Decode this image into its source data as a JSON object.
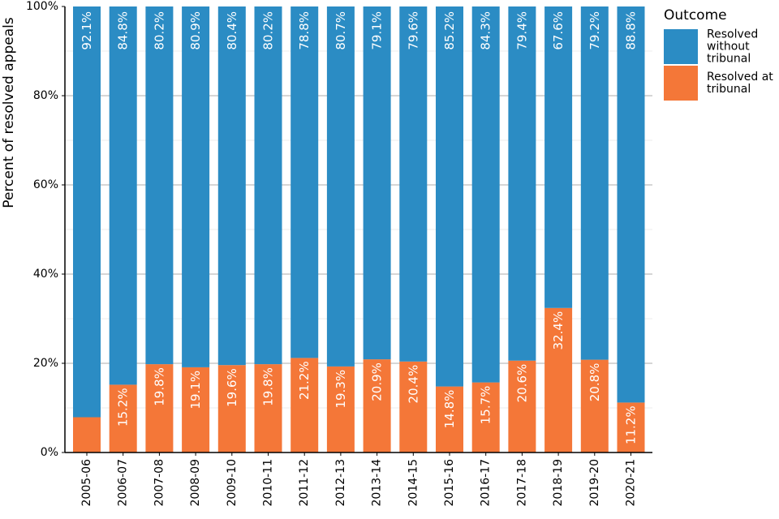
{
  "chart_data": {
    "type": "bar",
    "stacked": true,
    "percent": true,
    "ylabel": "Percent of resolved appeals",
    "xlabel": "",
    "ylim": [
      0,
      100
    ],
    "yticks": [
      "0%",
      "20%",
      "40%",
      "60%",
      "80%",
      "100%"
    ],
    "categories": [
      "2005-06",
      "2006-07",
      "2007-08",
      "2008-09",
      "2009-10",
      "2010-11",
      "2011-12",
      "2012-13",
      "2013-14",
      "2014-15",
      "2015-16",
      "2016-17",
      "2017-18",
      "2018-19",
      "2019-20",
      "2020-21"
    ],
    "series": [
      {
        "name": "Resolved at tribunal",
        "color": "#f47738",
        "values": [
          7.9,
          15.2,
          19.8,
          19.1,
          19.6,
          19.8,
          21.2,
          19.3,
          20.9,
          20.4,
          14.8,
          15.7,
          20.6,
          32.4,
          20.8,
          11.2
        ],
        "labels": [
          "",
          "15.2%",
          "19.8%",
          "19.1%",
          "19.6%",
          "19.8%",
          "21.2%",
          "19.3%",
          "20.9%",
          "20.4%",
          "14.8%",
          "15.7%",
          "20.6%",
          "32.4%",
          "20.8%",
          "11.2%"
        ]
      },
      {
        "name": "Resolved without tribunal",
        "color": "#2b8cc4",
        "values": [
          92.1,
          84.8,
          80.2,
          80.9,
          80.4,
          80.2,
          78.8,
          80.7,
          79.1,
          79.6,
          85.2,
          84.3,
          79.4,
          67.6,
          79.2,
          88.8
        ],
        "labels": [
          "92.1%",
          "84.8%",
          "80.2%",
          "80.9%",
          "80.4%",
          "80.2%",
          "78.8%",
          "80.7%",
          "79.1%",
          "79.6%",
          "85.2%",
          "84.3%",
          "79.4%",
          "67.6%",
          "79.2%",
          "88.8%"
        ]
      }
    ],
    "legend": {
      "title": "Outcome",
      "position": "right",
      "entries": [
        {
          "label_lines": [
            "Resolved",
            "without",
            "tribunal"
          ],
          "color": "#2b8cc4"
        },
        {
          "label_lines": [
            "Resolved at",
            "tribunal"
          ],
          "color": "#f47738"
        }
      ]
    },
    "grid": true
  }
}
